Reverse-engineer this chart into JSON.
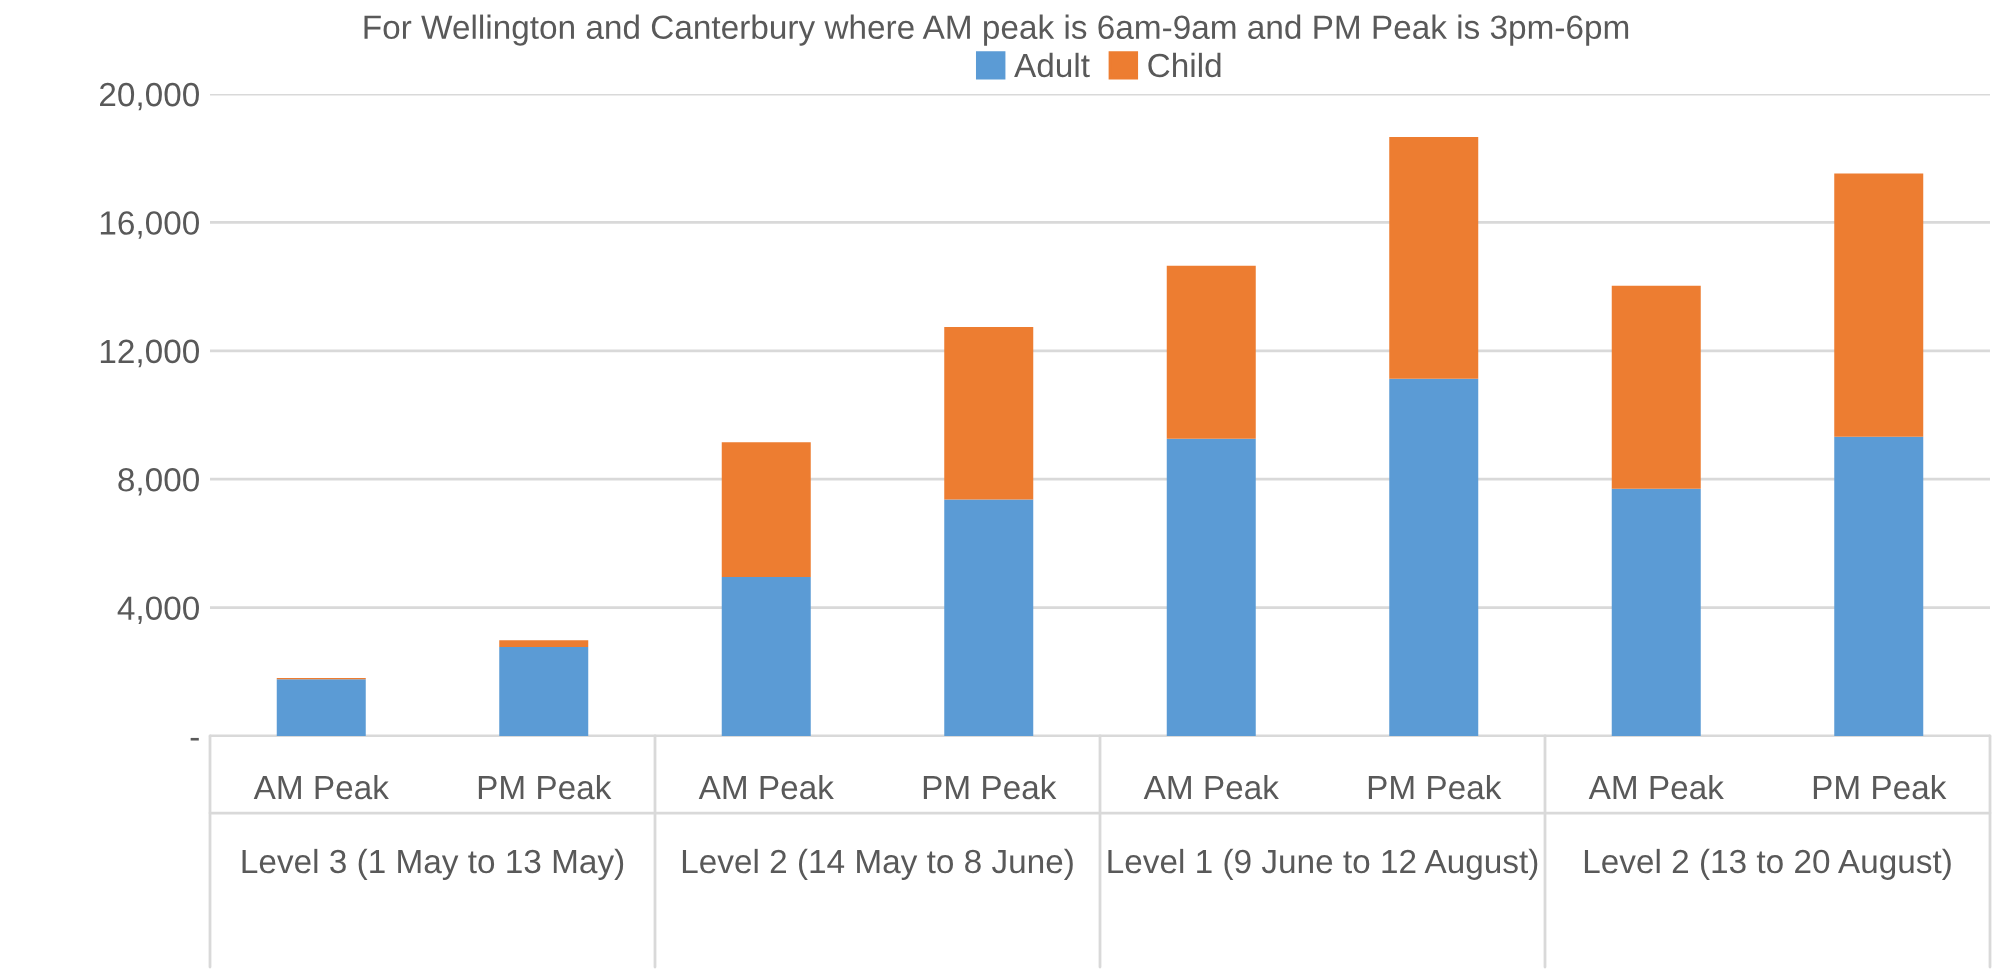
{
  "chart_data": {
    "type": "bar",
    "stacked": true,
    "title": "For Wellington and Canterbury where AM peak is 6am-9am and PM Peak is 3pm-6pm",
    "categories": [
      "AM Peak",
      "PM Peak",
      "AM Peak",
      "PM Peak",
      "AM Peak",
      "PM Peak",
      "AM Peak",
      "PM Peak"
    ],
    "series": [
      {
        "name": "Adult",
        "color": "#5b9bd5",
        "values": [
          1770,
          2770,
          4950,
          7370,
          9260,
          11130,
          7700,
          9320
        ]
      },
      {
        "name": "Child",
        "color": "#ed7d31",
        "values": [
          40,
          210,
          4200,
          5370,
          5390,
          7530,
          6330,
          8200
        ]
      }
    ],
    "annotations": [
      "Level 3 (1 May to 13 May)",
      "Level 2 (14 May to 8 June)",
      "Level 1 (9 June to 12 August)",
      "Level 2 (13 to 20 August)"
    ],
    "ylim": [
      0,
      20000
    ],
    "yticks": [
      {
        "value": 0,
        "label": "-"
      },
      {
        "value": 4000,
        "label": "4,000"
      },
      {
        "value": 8000,
        "label": "8,000"
      },
      {
        "value": 12000,
        "label": "12,000"
      },
      {
        "value": 16000,
        "label": "16,000"
      },
      {
        "value": 20000,
        "label": "20,000"
      }
    ],
    "grid": "y",
    "legend": "top"
  }
}
